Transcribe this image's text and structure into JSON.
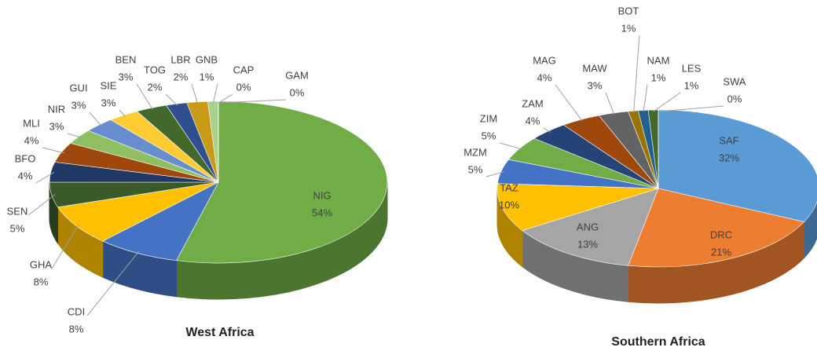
{
  "chart_data": [
    {
      "type": "pie",
      "title": "West Africa",
      "categories": [
        "NIG",
        "CDI",
        "GHA",
        "SEN",
        "BFO",
        "MLI",
        "NIR",
        "GUI",
        "SIE",
        "BEN",
        "TOG",
        "LBR",
        "GNB",
        "CAP",
        "GAM"
      ],
      "values": [
        54,
        8,
        8,
        5,
        4,
        4,
        3,
        3,
        3,
        3,
        2,
        2,
        1,
        0,
        0
      ],
      "value_labels": [
        "54%",
        "8%",
        "8%",
        "5%",
        "4%",
        "4%",
        "3%",
        "3%",
        "3%",
        "3%",
        "2%",
        "2%",
        "1%",
        "0%",
        "0%"
      ],
      "colors": [
        "#70ad47",
        "#4472c4",
        "#ffc000",
        "#3a5a2a",
        "#203864",
        "#9e480e",
        "#8fbf60",
        "#698ed0",
        "#ffcd33",
        "#43682b",
        "#2f4f8f",
        "#c99a18",
        "#a9d18e",
        "#9dc3e6",
        "#d9d9d9"
      ]
    },
    {
      "type": "pie",
      "title": "Southern Africa",
      "categories": [
        "SAF",
        "DRC",
        "ANG",
        "TAZ",
        "MZM",
        "ZIM",
        "ZAM",
        "MAG",
        "MAW",
        "BOT",
        "NAM",
        "LES",
        "SWA"
      ],
      "values": [
        32,
        21,
        13,
        10,
        5,
        5,
        4,
        4,
        3,
        1,
        1,
        1,
        0
      ],
      "value_labels": [
        "32%",
        "21%",
        "13%",
        "10%",
        "5%",
        "5%",
        "4%",
        "4%",
        "3%",
        "1%",
        "1%",
        "1%",
        "0%"
      ],
      "colors": [
        "#5b9bd5",
        "#ed7d31",
        "#a5a5a5",
        "#ffc000",
        "#4472c4",
        "#70ad47",
        "#264478",
        "#9e480e",
        "#636363",
        "#997300",
        "#255e91",
        "#43682b",
        "#698ed0"
      ]
    }
  ]
}
